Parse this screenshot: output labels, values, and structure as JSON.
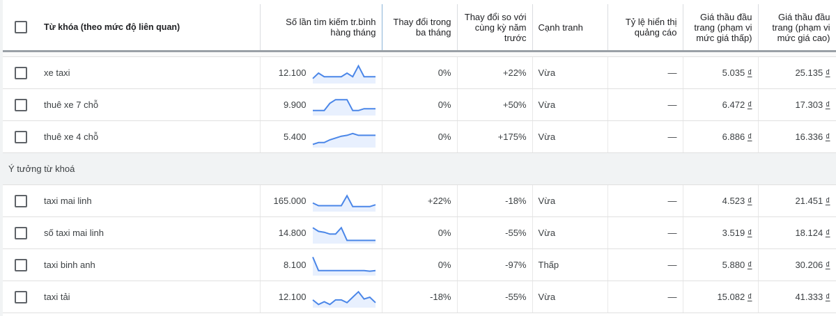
{
  "header": {
    "keyword": "Từ khóa (theo mức độ liên quan)",
    "avg_searches": "Số lần tìm kiếm tr.bình hàng tháng",
    "three_month": "Thay đổi trong ba tháng",
    "yoy": "Thay đổi so với cùng kỳ năm trước",
    "competition": "Cạnh tranh",
    "impression_share": "Tỷ lệ hiển thị quảng cáo",
    "bid_low": "Giá thầu đầu trang (phạm vi mức giá thấp)",
    "bid_high": "Giá thầu đầu trang (phạm vi mức giá cao)"
  },
  "colors": {
    "spark": "#4a86e8"
  },
  "currency": "₫",
  "provided": [
    {
      "keyword": "xe taxi",
      "searches": "12.100",
      "three_month": "0%",
      "yoy": "+22%",
      "competition": "Vừa",
      "impression": "—",
      "low": "5.035",
      "high": "25.135",
      "trend": [
        20,
        50,
        30,
        30,
        30,
        30,
        50,
        30,
        90,
        30,
        30,
        30
      ]
    },
    {
      "keyword": "thuê xe 7 chỗ",
      "searches": "9.900",
      "three_month": "0%",
      "yoy": "+50%",
      "competition": "Vừa",
      "impression": "—",
      "low": "6.472",
      "high": "17.303",
      "trend": [
        20,
        20,
        20,
        60,
        80,
        80,
        80,
        20,
        20,
        30,
        30,
        30
      ]
    },
    {
      "keyword": "thuê xe 4 chỗ",
      "searches": "5.400",
      "three_month": "0%",
      "yoy": "+175%",
      "competition": "Vừa",
      "impression": "—",
      "low": "6.886",
      "high": "16.336",
      "trend": [
        10,
        20,
        20,
        35,
        45,
        55,
        60,
        70,
        60,
        60,
        60,
        60
      ]
    }
  ],
  "group_label": "Ý tưởng từ khoá",
  "ideas": [
    {
      "keyword": "taxi mai linh",
      "searches": "165.000",
      "three_month": "+22%",
      "yoy": "-18%",
      "competition": "Vừa",
      "impression": "—",
      "low": "4.523",
      "high": "21.451",
      "trend": [
        40,
        25,
        25,
        25,
        25,
        25,
        80,
        20,
        20,
        20,
        20,
        30
      ]
    },
    {
      "keyword": "số taxi mai linh",
      "searches": "14.800",
      "three_month": "0%",
      "yoy": "-55%",
      "competition": "Vừa",
      "impression": "—",
      "low": "3.519",
      "high": "18.124",
      "trend": [
        80,
        60,
        55,
        45,
        45,
        80,
        10,
        10,
        10,
        10,
        10,
        10
      ]
    },
    {
      "keyword": "taxi binh anh",
      "searches": "8.100",
      "three_month": "0%",
      "yoy": "-97%",
      "competition": "Thấp",
      "impression": "—",
      "low": "5.880",
      "high": "30.206",
      "trend": [
        95,
        20,
        20,
        20,
        20,
        20,
        20,
        20,
        20,
        20,
        17,
        20
      ]
    },
    {
      "keyword": "taxi tải",
      "searches": "12.100",
      "three_month": "-18%",
      "yoy": "-55%",
      "competition": "Vừa",
      "impression": "—",
      "low": "15.082",
      "high": "41.333",
      "trend": [
        35,
        10,
        25,
        10,
        35,
        35,
        20,
        50,
        80,
        40,
        50,
        20
      ]
    }
  ]
}
